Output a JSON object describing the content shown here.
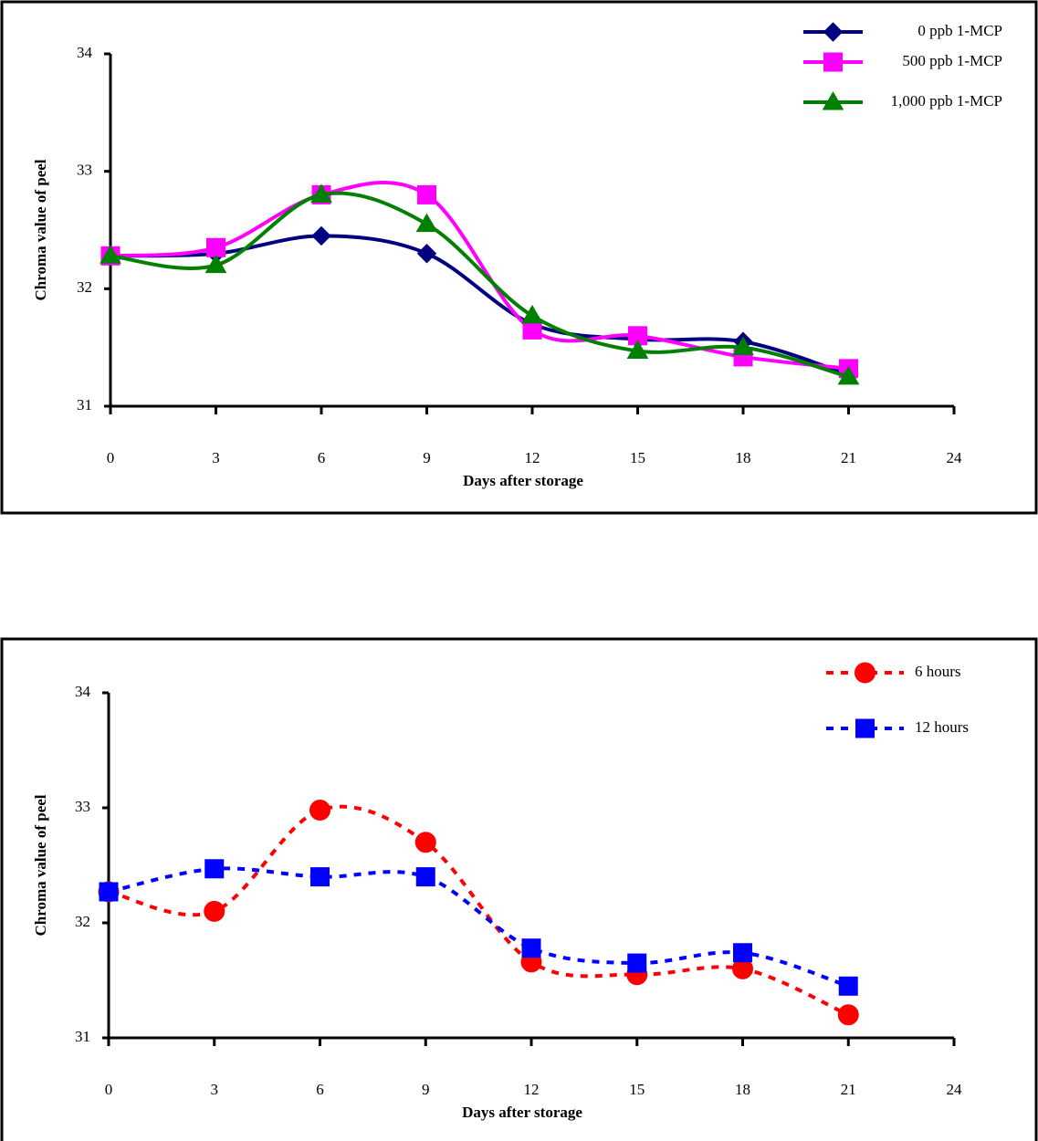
{
  "chart_data": [
    {
      "type": "line",
      "xlabel": "Days after storage",
      "ylabel": "Chroma value of peel",
      "x": [
        0,
        3,
        6,
        9,
        12,
        15,
        18,
        21
      ],
      "xlim": [
        0,
        24
      ],
      "xticks": [
        0,
        3,
        6,
        9,
        12,
        15,
        18,
        21,
        24
      ],
      "ylim": [
        31,
        34
      ],
      "yticks": [
        31,
        32,
        33,
        34
      ],
      "smooth": true,
      "dashed": false,
      "legend": "upper right",
      "series": [
        {
          "name": "0 ppb 1-MCP",
          "color": "#000080",
          "marker": "diamond",
          "values": [
            32.28,
            32.3,
            32.45,
            32.3,
            31.7,
            31.57,
            31.55,
            31.27
          ]
        },
        {
          "name": "500 ppb 1-MCP",
          "color": "#ff00ff",
          "marker": "square",
          "values": [
            32.28,
            32.35,
            32.8,
            32.8,
            31.65,
            31.6,
            31.42,
            31.32
          ]
        },
        {
          "name": "1,000 ppb 1-MCP",
          "color": "#008000",
          "marker": "triangle",
          "values": [
            32.28,
            32.2,
            32.8,
            32.55,
            31.77,
            31.47,
            31.5,
            31.25
          ]
        }
      ]
    },
    {
      "type": "line",
      "xlabel": "Days after storage",
      "ylabel": "Chroma value of peel",
      "x": [
        0,
        3,
        6,
        9,
        12,
        15,
        18,
        21
      ],
      "xlim": [
        0,
        24
      ],
      "xticks": [
        0,
        3,
        6,
        9,
        12,
        15,
        18,
        21,
        24
      ],
      "ylim": [
        31,
        34
      ],
      "yticks": [
        31,
        32,
        33,
        34
      ],
      "smooth": true,
      "dashed": true,
      "legend": "upper right",
      "series": [
        {
          "name": "6 hours",
          "color": "#ff0000",
          "marker": "circle",
          "values": [
            32.27,
            32.1,
            32.98,
            32.7,
            31.66,
            31.55,
            31.6,
            31.2
          ]
        },
        {
          "name": "12 hours",
          "color": "#0000ff",
          "marker": "square",
          "values": [
            32.27,
            32.47,
            32.4,
            32.4,
            31.78,
            31.65,
            31.74,
            31.45
          ]
        }
      ]
    }
  ]
}
